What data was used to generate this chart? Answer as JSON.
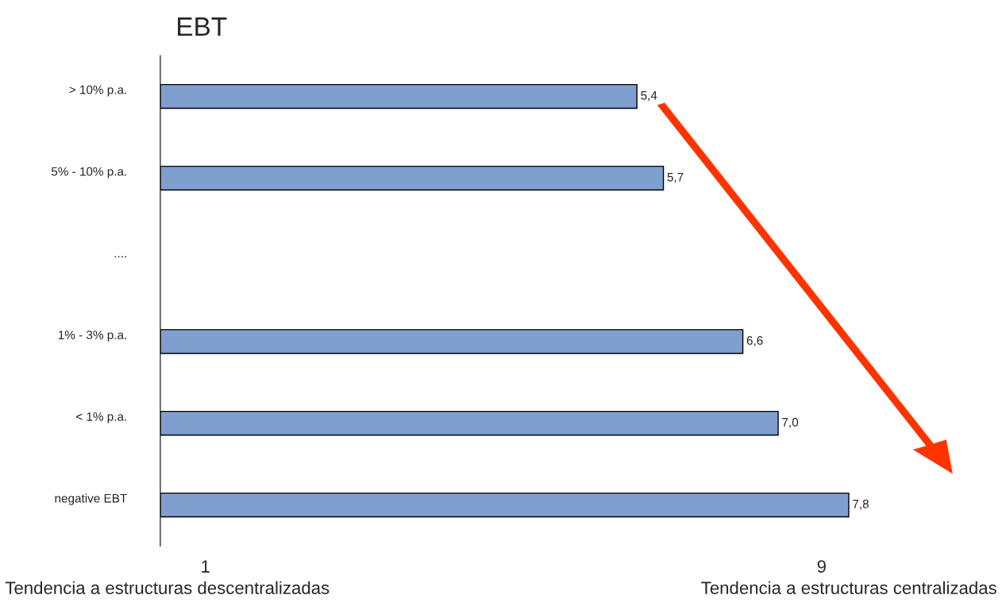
{
  "chart_data": {
    "type": "bar",
    "orientation": "horizontal",
    "title": "EBT",
    "categories": [
      "> 10% p.a.",
      "5% - 10% p.a.",
      "....",
      "1% - 3% p.a.",
      "< 1% p.a.",
      "negative EBT"
    ],
    "values": [
      5.4,
      5.7,
      null,
      6.6,
      7.0,
      7.8
    ],
    "value_labels": [
      "5,4",
      "5,7",
      null,
      "6,6",
      "7,0",
      "7,8"
    ],
    "color": "#7f9fcf",
    "tick_labels": "y",
    "grid": false,
    "annotations": [
      "1",
      "9",
      "Tendencia a estructuras descentralizadas",
      "Tendencia a estructuras centralizadas"
    ]
  }
}
